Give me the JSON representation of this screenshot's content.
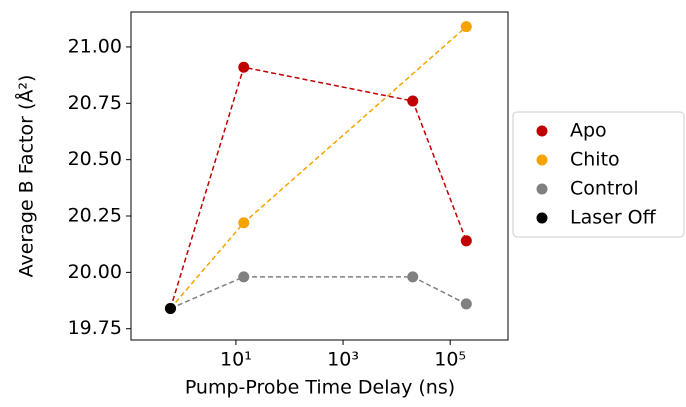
{
  "chart_data": {
    "type": "line",
    "xlabel": "Pump-Probe Time Delay (ns)",
    "ylabel": "Average B Factor (Å²)",
    "xscale": "log",
    "xlim": [
      0.11,
      1200000
    ],
    "xticks": [
      {
        "value": 10,
        "label": "10¹"
      },
      {
        "value": 1000,
        "label": "10³"
      },
      {
        "value": 100000,
        "label": "10⁵"
      }
    ],
    "ylim": [
      19.7,
      21.155
    ],
    "yticks": [
      {
        "value": 19.75,
        "label": "19.75"
      },
      {
        "value": 20,
        "label": "20.00"
      },
      {
        "value": 20.25,
        "label": "20.25"
      },
      {
        "value": 20.5,
        "label": "20.50"
      },
      {
        "value": 20.75,
        "label": "20.75"
      },
      {
        "value": 21,
        "label": "21.00"
      }
    ],
    "grid": false,
    "legend": "outside right",
    "series": [
      {
        "name": "Apo",
        "color": "#c00000",
        "x": [
          0.6,
          14,
          20000,
          200000
        ],
        "values": [
          19.84,
          20.91,
          20.76,
          20.14
        ]
      },
      {
        "name": "Chito",
        "color": "#f5a300",
        "x": [
          0.6,
          14,
          200000
        ],
        "values": [
          19.84,
          20.22,
          21.09
        ]
      },
      {
        "name": "Control",
        "color": "#808080",
        "x": [
          0.6,
          14,
          20000,
          200000
        ],
        "values": [
          19.84,
          19.98,
          19.98,
          19.86
        ]
      },
      {
        "name": "Laser Off",
        "color": "#000000",
        "x": [
          0.6
        ],
        "values": [
          19.84
        ]
      }
    ]
  }
}
